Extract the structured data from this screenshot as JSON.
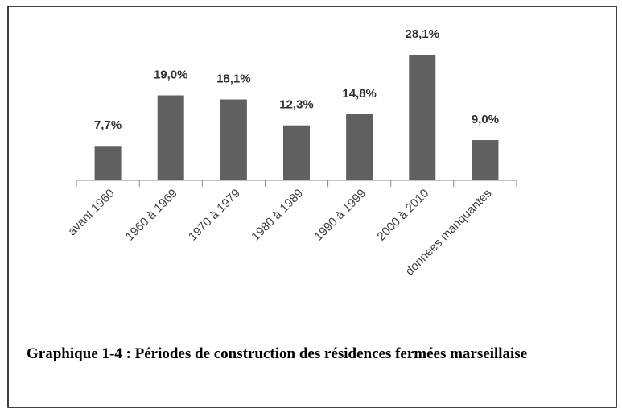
{
  "chart_data": {
    "type": "bar",
    "categories": [
      "avant 1960",
      "1960 à 1969",
      "1970 à 1979",
      "1980 à 1989",
      "1990 à 1999",
      "2000 à 2010",
      "données manquantes"
    ],
    "values": [
      7.7,
      19.0,
      18.1,
      12.3,
      14.8,
      28.1,
      9.0
    ],
    "value_labels": [
      "7,7%",
      "19,0%",
      "18,1%",
      "12,3%",
      "14,8%",
      "28,1%",
      "9,0%"
    ],
    "color": "#606060",
    "caption": "Graphique 1-4 : Périodes de construction des résidences fermées marseillaise"
  }
}
